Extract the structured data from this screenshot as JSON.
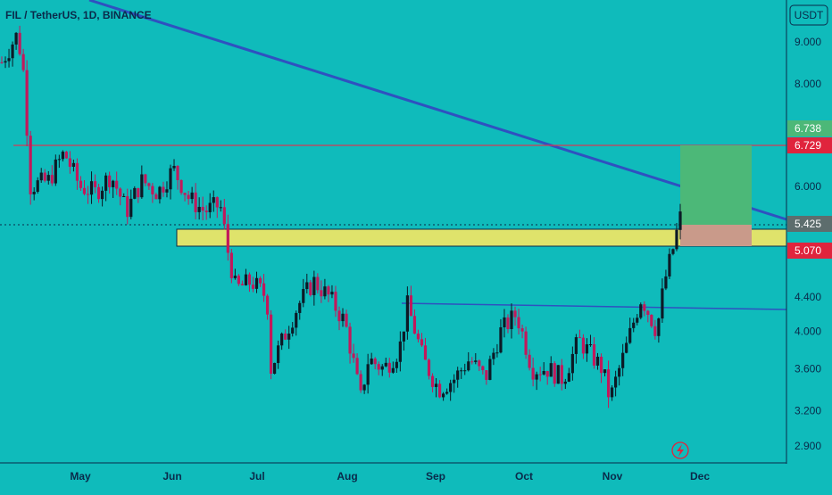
{
  "header": {
    "title": "FIL / TetherUS, 1D, BINANCE",
    "currency_button": "USDT"
  },
  "colors": {
    "background": "#0fbbbb",
    "up_candle": "#0b1a26",
    "down_candle": "#c2185b",
    "trendline": "#2f51c0",
    "resistance_line": "#d33b55",
    "support_zone_fill": "#dfe36b",
    "target_zone_fill": "#4cb878",
    "stop_zone_fill": "#c99a8a",
    "price_label_green": "#4cb878",
    "price_label_red": "#e0243d",
    "price_label_gray": "#5d6d6d"
  },
  "chart_data": {
    "type": "candlestick",
    "title": "FIL / TetherUS, 1D, BINANCE",
    "axis_scale": "log",
    "x_ticks": [
      "May",
      "Jun",
      "Jul",
      "Aug",
      "Sep",
      "Oct",
      "Nov",
      "Dec"
    ],
    "y_ticks": [
      9.0,
      8.0,
      6.0,
      4.4,
      4.0,
      3.6,
      3.2,
      2.9
    ],
    "price_labels": [
      {
        "value": "6.738",
        "style": "green"
      },
      {
        "value": "6.729",
        "style": "red"
      },
      {
        "value": "5.425",
        "style": "gray"
      },
      {
        "value": "5.070",
        "style": "red"
      }
    ],
    "close_path": [
      {
        "x": 0,
        "y": 8.5
      },
      {
        "x": 0.02,
        "y": 9.2
      },
      {
        "x": 0.03,
        "y": 8.0
      },
      {
        "x": 0.035,
        "y": 6.0
      },
      {
        "x": 0.06,
        "y": 6.1
      },
      {
        "x": 0.08,
        "y": 6.6
      },
      {
        "x": 0.1,
        "y": 6.0
      },
      {
        "x": 0.12,
        "y": 5.9
      },
      {
        "x": 0.14,
        "y": 6.2
      },
      {
        "x": 0.16,
        "y": 5.6
      },
      {
        "x": 0.18,
        "y": 6.1
      },
      {
        "x": 0.2,
        "y": 5.9
      },
      {
        "x": 0.22,
        "y": 6.3
      },
      {
        "x": 0.24,
        "y": 5.8
      },
      {
        "x": 0.26,
        "y": 5.6
      },
      {
        "x": 0.28,
        "y": 5.7
      },
      {
        "x": 0.29,
        "y": 5.0
      },
      {
        "x": 0.3,
        "y": 4.5
      },
      {
        "x": 0.32,
        "y": 4.6
      },
      {
        "x": 0.34,
        "y": 4.4
      },
      {
        "x": 0.345,
        "y": 3.6
      },
      {
        "x": 0.36,
        "y": 3.9
      },
      {
        "x": 0.38,
        "y": 4.3
      },
      {
        "x": 0.4,
        "y": 4.6
      },
      {
        "x": 0.42,
        "y": 4.4
      },
      {
        "x": 0.44,
        "y": 4.1
      },
      {
        "x": 0.45,
        "y": 3.7
      },
      {
        "x": 0.46,
        "y": 3.3
      },
      {
        "x": 0.47,
        "y": 3.7
      },
      {
        "x": 0.49,
        "y": 3.6
      },
      {
        "x": 0.51,
        "y": 3.8
      },
      {
        "x": 0.52,
        "y": 4.3
      },
      {
        "x": 0.54,
        "y": 3.7
      },
      {
        "x": 0.56,
        "y": 3.4
      },
      {
        "x": 0.58,
        "y": 3.5
      },
      {
        "x": 0.6,
        "y": 3.7
      },
      {
        "x": 0.62,
        "y": 3.5
      },
      {
        "x": 0.64,
        "y": 4.0
      },
      {
        "x": 0.66,
        "y": 4.2
      },
      {
        "x": 0.68,
        "y": 3.6
      },
      {
        "x": 0.7,
        "y": 3.6
      },
      {
        "x": 0.72,
        "y": 3.5
      },
      {
        "x": 0.74,
        "y": 3.9
      },
      {
        "x": 0.75,
        "y": 3.8
      },
      {
        "x": 0.77,
        "y": 3.6
      },
      {
        "x": 0.78,
        "y": 3.3
      },
      {
        "x": 0.8,
        "y": 3.8
      },
      {
        "x": 0.82,
        "y": 4.4
      },
      {
        "x": 0.84,
        "y": 4.0
      },
      {
        "x": 0.85,
        "y": 4.6
      },
      {
        "x": 0.86,
        "y": 5.0
      },
      {
        "x": 0.87,
        "y": 5.5
      }
    ]
  }
}
